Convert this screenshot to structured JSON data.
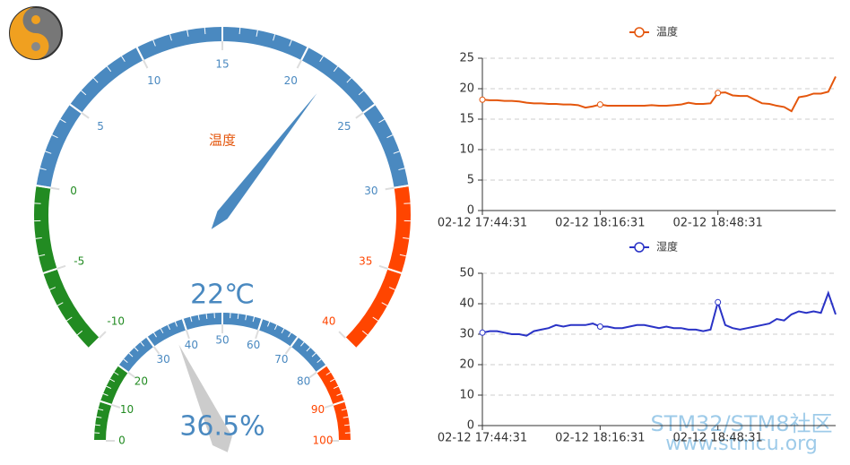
{
  "chart_data": [
    {
      "type": "gauge",
      "title": "温度",
      "ylim": [
        -10,
        40
      ],
      "yticks": [
        -10,
        -5,
        0,
        5,
        10,
        15,
        20,
        25,
        30,
        35,
        40
      ],
      "bands": [
        {
          "to": 0,
          "color": "#228b22"
        },
        {
          "to": 30,
          "color": "#4a89c0"
        },
        {
          "to": 40,
          "color": "#ff4500"
        }
      ],
      "values": [
        22
      ],
      "value_labels": [
        "22℃"
      ],
      "color": "#4a89c0"
    },
    {
      "type": "gauge",
      "ylim": [
        0,
        100
      ],
      "yticks": [
        0,
        10,
        20,
        30,
        40,
        50,
        60,
        70,
        80,
        90,
        100
      ],
      "bands": [
        {
          "to": 20,
          "color": "#228b22"
        },
        {
          "to": 80,
          "color": "#4a89c0"
        },
        {
          "to": 100,
          "color": "#ff4500"
        }
      ],
      "values": [
        36.5
      ],
      "value_labels": [
        "36.5%"
      ],
      "color": "#cccccc"
    },
    {
      "type": "line",
      "ylim": [
        0,
        25
      ],
      "yticks": [
        0,
        5,
        10,
        15,
        20,
        25
      ],
      "grid": true,
      "categories": [
        "02-12 17:44:31",
        null,
        null,
        null,
        null,
        null,
        null,
        null,
        null,
        null,
        null,
        null,
        null,
        null,
        null,
        null,
        "02-12 18:16:31",
        null,
        null,
        null,
        null,
        null,
        null,
        null,
        null,
        null,
        null,
        null,
        null,
        null,
        null,
        null,
        "02-12 18:48:31",
        null,
        null,
        null,
        null,
        null,
        null,
        null,
        null,
        null,
        null,
        null,
        null,
        null,
        null,
        null,
        null
      ],
      "series": [
        {
          "name": "温度",
          "color": "#e4560c",
          "values": [
            18.2,
            18.1,
            18.1,
            18.0,
            18.0,
            17.9,
            17.7,
            17.6,
            17.6,
            17.5,
            17.5,
            17.4,
            17.4,
            17.3,
            16.9,
            17.1,
            17.4,
            17.2,
            17.2,
            17.2,
            17.2,
            17.2,
            17.2,
            17.3,
            17.2,
            17.2,
            17.3,
            17.4,
            17.7,
            17.5,
            17.5,
            17.6,
            19.3,
            19.4,
            18.9,
            18.8,
            18.8,
            18.2,
            17.6,
            17.5,
            17.2,
            17.0,
            16.3,
            18.6,
            18.8,
            19.2,
            19.2,
            19.5,
            22.0
          ]
        }
      ]
    },
    {
      "type": "line",
      "ylim": [
        0,
        50
      ],
      "yticks": [
        0,
        10,
        20,
        30,
        40,
        50
      ],
      "grid": true,
      "categories": [
        "02-12 17:44:31",
        null,
        null,
        null,
        null,
        null,
        null,
        null,
        null,
        null,
        null,
        null,
        null,
        null,
        null,
        null,
        "02-12 18:16:31",
        null,
        null,
        null,
        null,
        null,
        null,
        null,
        null,
        null,
        null,
        null,
        null,
        null,
        null,
        null,
        "02-12 18:48:31",
        null,
        null,
        null,
        null,
        null,
        null,
        null,
        null,
        null,
        null,
        null,
        null,
        null,
        null,
        null,
        null
      ],
      "series": [
        {
          "name": "湿度",
          "color": "#2a33c6",
          "values": [
            30.5,
            31,
            31,
            30.5,
            30,
            30,
            29.5,
            31,
            31.5,
            32,
            33,
            32.5,
            33,
            33,
            33,
            33.5,
            32.5,
            32.5,
            32,
            32,
            32.5,
            33,
            33,
            32.5,
            32,
            32.5,
            32,
            32,
            31.5,
            31.5,
            31,
            31.5,
            40.5,
            33,
            32,
            31.5,
            32,
            32.5,
            33,
            33.5,
            35,
            34.5,
            36.5,
            37.5,
            37,
            37.5,
            37,
            43.5,
            36.5
          ]
        }
      ]
    }
  ],
  "watermark": {
    "title": "STM32/STM8社区",
    "url": "www.stmcu.org"
  }
}
